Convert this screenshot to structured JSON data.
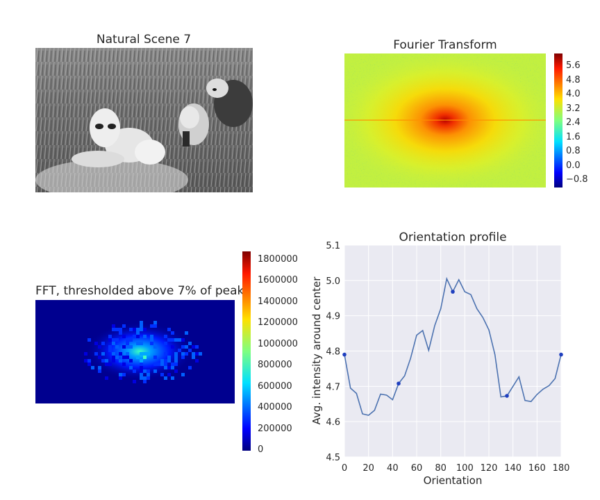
{
  "panels": {
    "scene": {
      "title": "Natural Scene 7",
      "image": "grayscale photograph of lions in tall grass"
    },
    "fourier": {
      "title": "Fourier Transform",
      "colorbar_ticks": [
        "5.6",
        "4.8",
        "4.0",
        "3.2",
        "2.4",
        "1.6",
        "0.8",
        "0.0",
        "−0.8"
      ],
      "colormap": "jet"
    },
    "fft_threshold": {
      "title": "FFT, thresholded above 7% of peak",
      "colorbar_ticks": [
        "1800000",
        "1600000",
        "1400000",
        "1200000",
        "1000000",
        "800000",
        "600000",
        "400000",
        "200000",
        "0"
      ],
      "colormap": "jet"
    }
  },
  "chart_data": {
    "type": "line",
    "title": "Orientation profile",
    "xlabel": "Orientation",
    "ylabel": "Avg. intensity around center",
    "xlim": [
      0,
      180
    ],
    "ylim": [
      4.5,
      5.1
    ],
    "xticks": [
      "0",
      "20",
      "40",
      "60",
      "80",
      "100",
      "120",
      "140",
      "160",
      "180"
    ],
    "yticks": [
      "4.5",
      "4.6",
      "4.7",
      "4.8",
      "4.9",
      "5.0",
      "5.1"
    ],
    "grid": true,
    "background": "#eaeaf2",
    "line_color": "#4c72b0",
    "marker_color": "#1f3fbf",
    "x": [
      0,
      5,
      10,
      15,
      20,
      25,
      30,
      35,
      40,
      45,
      50,
      55,
      60,
      65,
      70,
      75,
      80,
      85,
      90,
      95,
      100,
      105,
      110,
      115,
      120,
      125,
      130,
      135,
      140,
      145,
      150,
      155,
      160,
      165,
      170,
      175,
      180
    ],
    "y": [
      4.79,
      4.695,
      4.68,
      4.622,
      4.618,
      4.632,
      4.678,
      4.675,
      4.662,
      4.708,
      4.73,
      4.78,
      4.845,
      4.858,
      4.802,
      4.872,
      4.92,
      5.005,
      4.968,
      5.002,
      4.968,
      4.96,
      4.92,
      4.895,
      4.86,
      4.79,
      4.67,
      4.673,
      4.7,
      4.727,
      4.66,
      4.657,
      4.677,
      4.692,
      4.702,
      4.722,
      4.79
    ],
    "markers": [
      {
        "x": 0,
        "y": 4.79
      },
      {
        "x": 45,
        "y": 4.708
      },
      {
        "x": 90,
        "y": 4.968
      },
      {
        "x": 135,
        "y": 4.673
      },
      {
        "x": 180,
        "y": 4.79
      }
    ]
  }
}
